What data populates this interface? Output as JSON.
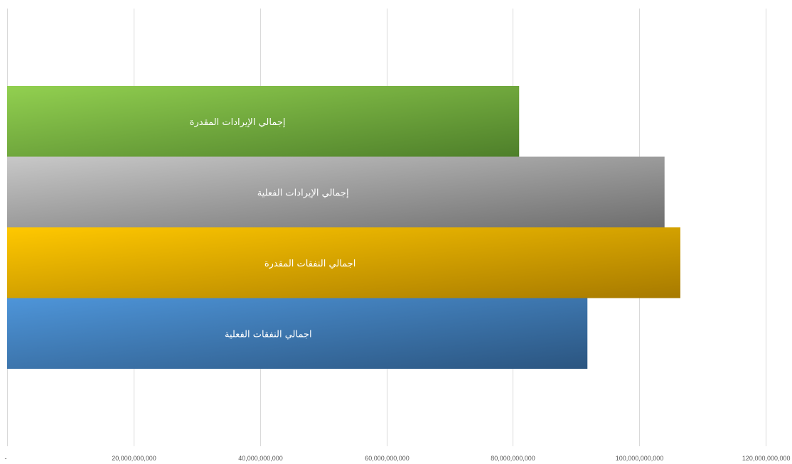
{
  "chart_data": {
    "type": "bar",
    "orientation": "horizontal",
    "categories": [
      "إجمالي الإيرادات المقدرة",
      "إجمالي الإيرادات الفعلية",
      "اجمالي النفقات المقدرة",
      "اجمالي النفقات الفعلية"
    ],
    "values": [
      81000000000,
      104000000000,
      106500000000,
      91800000000
    ],
    "colors": [
      "#70AD47",
      "#A5A5A5",
      "#FFC000",
      "#4472C4"
    ],
    "xlim": [
      0,
      120000000000
    ],
    "xticks": [
      0,
      20000000000,
      40000000000,
      60000000000,
      80000000000,
      100000000000,
      120000000000
    ],
    "xtick_labels": [
      "-",
      "20,000,000,000",
      "40,000,000,000",
      "60,000,000,000",
      "80,000,000,000",
      "100,000,000,000",
      "120,000,000,000"
    ],
    "grid": true,
    "legend": "none"
  }
}
